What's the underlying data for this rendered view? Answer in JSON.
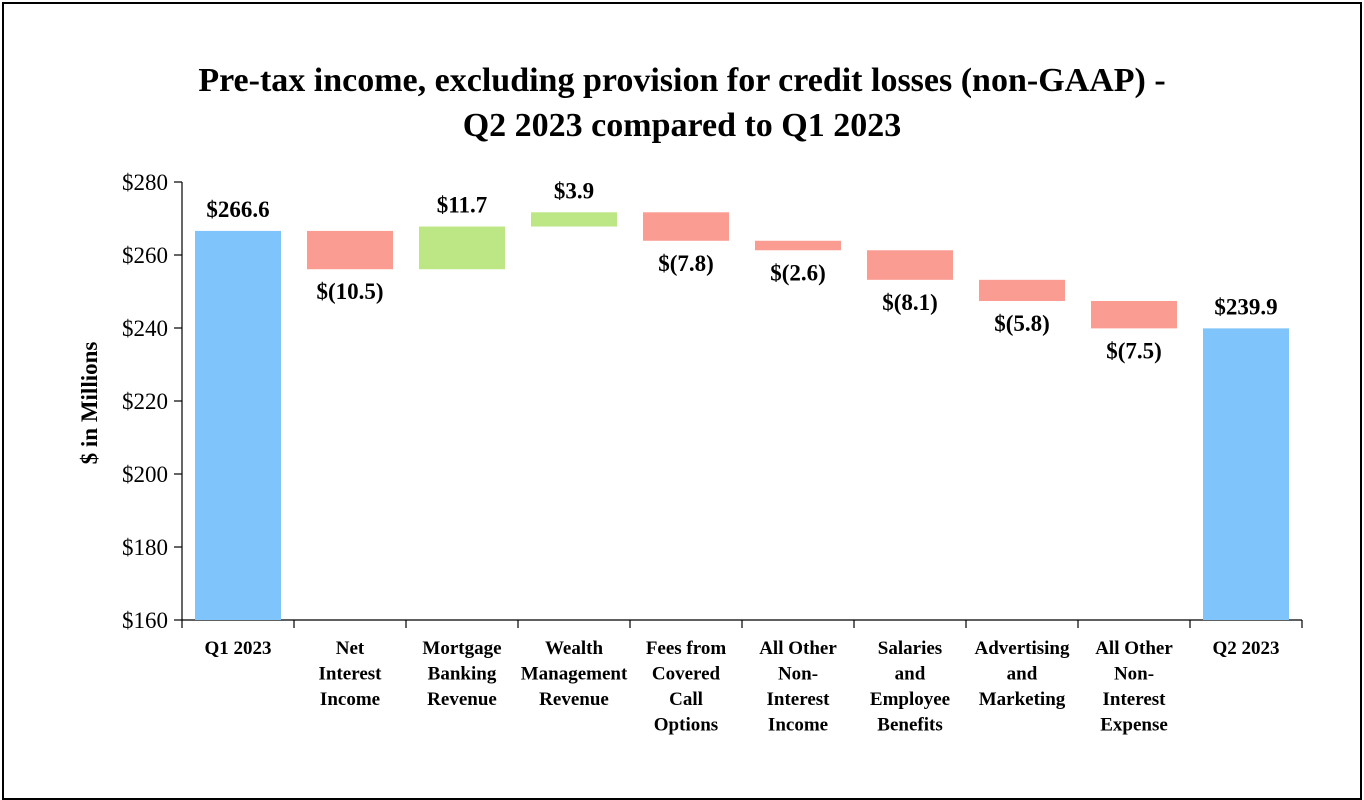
{
  "chart_data": {
    "type": "bar",
    "subtype": "waterfall",
    "title": [
      "Pre-tax income, excluding provision for credit losses (non-GAAP) -",
      "Q2 2023 compared to Q1 2023"
    ],
    "ylabel": "$ in Millions",
    "ylim": [
      160,
      280
    ],
    "yticks": [
      160,
      180,
      200,
      220,
      240,
      260,
      280
    ],
    "ytick_labels": [
      "$160",
      "$180",
      "$200",
      "$220",
      "$240",
      "$260",
      "$280"
    ],
    "categories": [
      [
        "Q1 2023"
      ],
      [
        "Net",
        "Interest",
        "Income"
      ],
      [
        "Mortgage",
        "Banking",
        "Revenue"
      ],
      [
        "Wealth",
        "Management",
        "Revenue"
      ],
      [
        "Fees from",
        "Covered",
        "Call",
        "Options"
      ],
      [
        "All Other",
        "Non-",
        "Interest",
        "Income"
      ],
      [
        "Salaries",
        "and",
        "Employee",
        "Benefits"
      ],
      [
        "Advertising",
        "and",
        "Marketing"
      ],
      [
        "All Other",
        "Non-",
        "Interest",
        "Expense"
      ],
      [
        "Q2 2023"
      ]
    ],
    "values": [
      266.6,
      -10.5,
      11.7,
      3.9,
      -7.8,
      -2.6,
      -8.1,
      -5.8,
      -7.5,
      239.9
    ],
    "bar_kinds": [
      "total",
      "decrease",
      "increase",
      "increase",
      "decrease",
      "decrease",
      "decrease",
      "decrease",
      "decrease",
      "total"
    ],
    "data_labels": [
      "$266.6",
      "$(10.5)",
      "$11.7",
      "$3.9",
      "$(7.8)",
      "$(2.6)",
      "$(8.1)",
      "$(5.8)",
      "$(7.5)",
      "$239.9"
    ],
    "grid": false,
    "legend": "none",
    "colors": {
      "total": "#7fc5fb",
      "increase": "#bde684",
      "decrease": "#fb9c92"
    }
  }
}
